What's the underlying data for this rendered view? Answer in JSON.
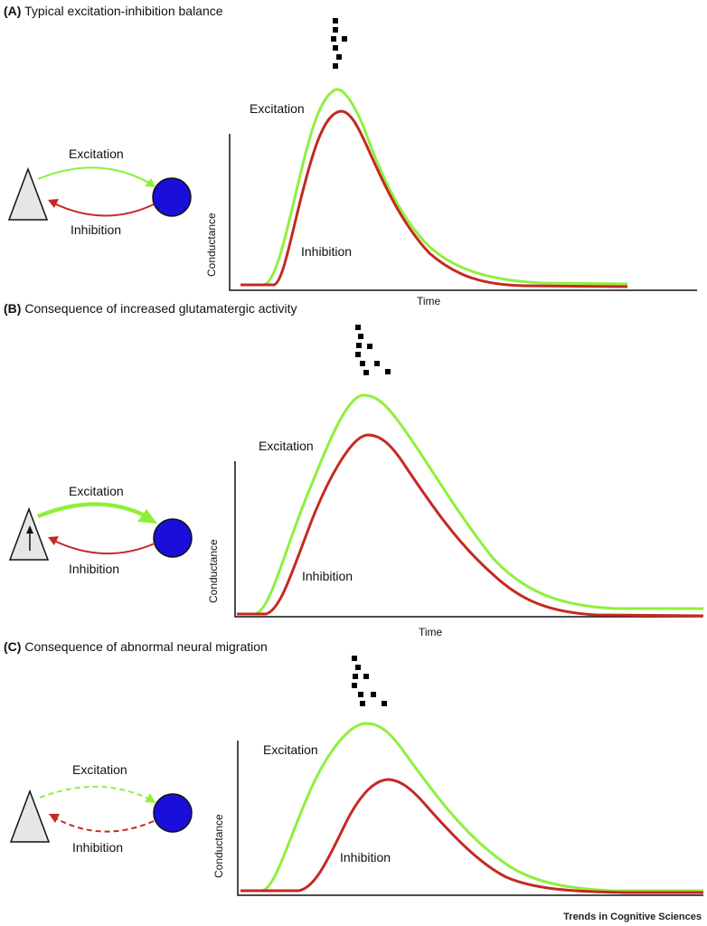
{
  "panels": [
    {
      "letter": "(A)",
      "title": "Typical excitation-inhibition balance",
      "excitation_label": "Excitation",
      "inhibition_label": "Inhibition",
      "curve_excitation_label": "Excitation",
      "curve_inhibition_label": "Inhibition",
      "ylabel": "Conductance",
      "xlabel": "Time"
    },
    {
      "letter": "(B)",
      "title": "Consequence of increased glutamatergic activity",
      "excitation_label": "Excitation",
      "inhibition_label": "Inhibition",
      "curve_excitation_label": "Excitation",
      "curve_inhibition_label": "Inhibition",
      "ylabel": "Conductance",
      "xlabel": "Time"
    },
    {
      "letter": "(C)",
      "title": "Consequence of abnormal neural migration",
      "excitation_label": "Excitation",
      "inhibition_label": "Inhibition",
      "curve_excitation_label": "Excitation",
      "curve_inhibition_label": "Inhibition",
      "ylabel": "Conductance",
      "xlabel": ""
    }
  ],
  "colors": {
    "excitation": "#8ef03c",
    "inhibition": "#c42a22",
    "interneuron": "#1a0fd8",
    "pyramidal": "#e6e6e6"
  },
  "footer": "Trends in Cognitive Sciences"
}
